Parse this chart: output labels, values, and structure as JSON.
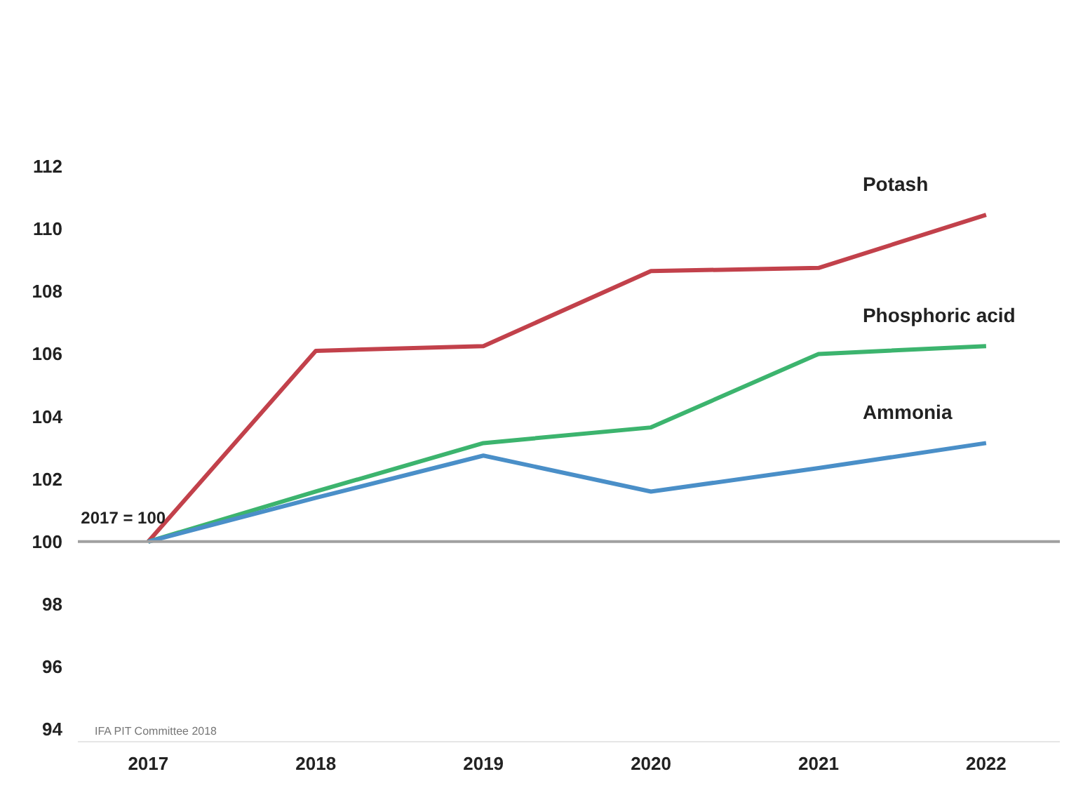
{
  "chart_data": {
    "type": "line",
    "x": [
      2017,
      2018,
      2019,
      2020,
      2021,
      2022
    ],
    "series": [
      {
        "name": "Potash",
        "color": "#c2414b",
        "values": [
          100,
          106.1,
          106.25,
          108.65,
          108.75,
          110.45
        ]
      },
      {
        "name": "Phosphoric acid",
        "color": "#3cb46e",
        "values": [
          100,
          101.6,
          103.15,
          103.65,
          106,
          106.25
        ]
      },
      {
        "name": "Ammonia",
        "color": "#4a8fc8",
        "values": [
          100,
          101.4,
          102.75,
          101.6,
          102.35,
          103.15
        ]
      }
    ],
    "xlim": [
      2016.58,
      2022.44
    ],
    "xticks": [
      2017,
      2018,
      2019,
      2020,
      2021,
      2022
    ],
    "ylim": [
      93.6,
      112
    ],
    "yticks": [
      94,
      96,
      98,
      100,
      102,
      104,
      106,
      108,
      110,
      112
    ],
    "ref_lines": [
      {
        "axis": "y",
        "value": 100,
        "color": "#a0a0a0"
      }
    ],
    "annotations": [
      {
        "text": "2017 = 100",
        "x": 2017,
        "y": 100
      },
      "IFA PIT Committee 2018"
    ],
    "grid": false,
    "marker": "none",
    "line_style": "solid"
  }
}
